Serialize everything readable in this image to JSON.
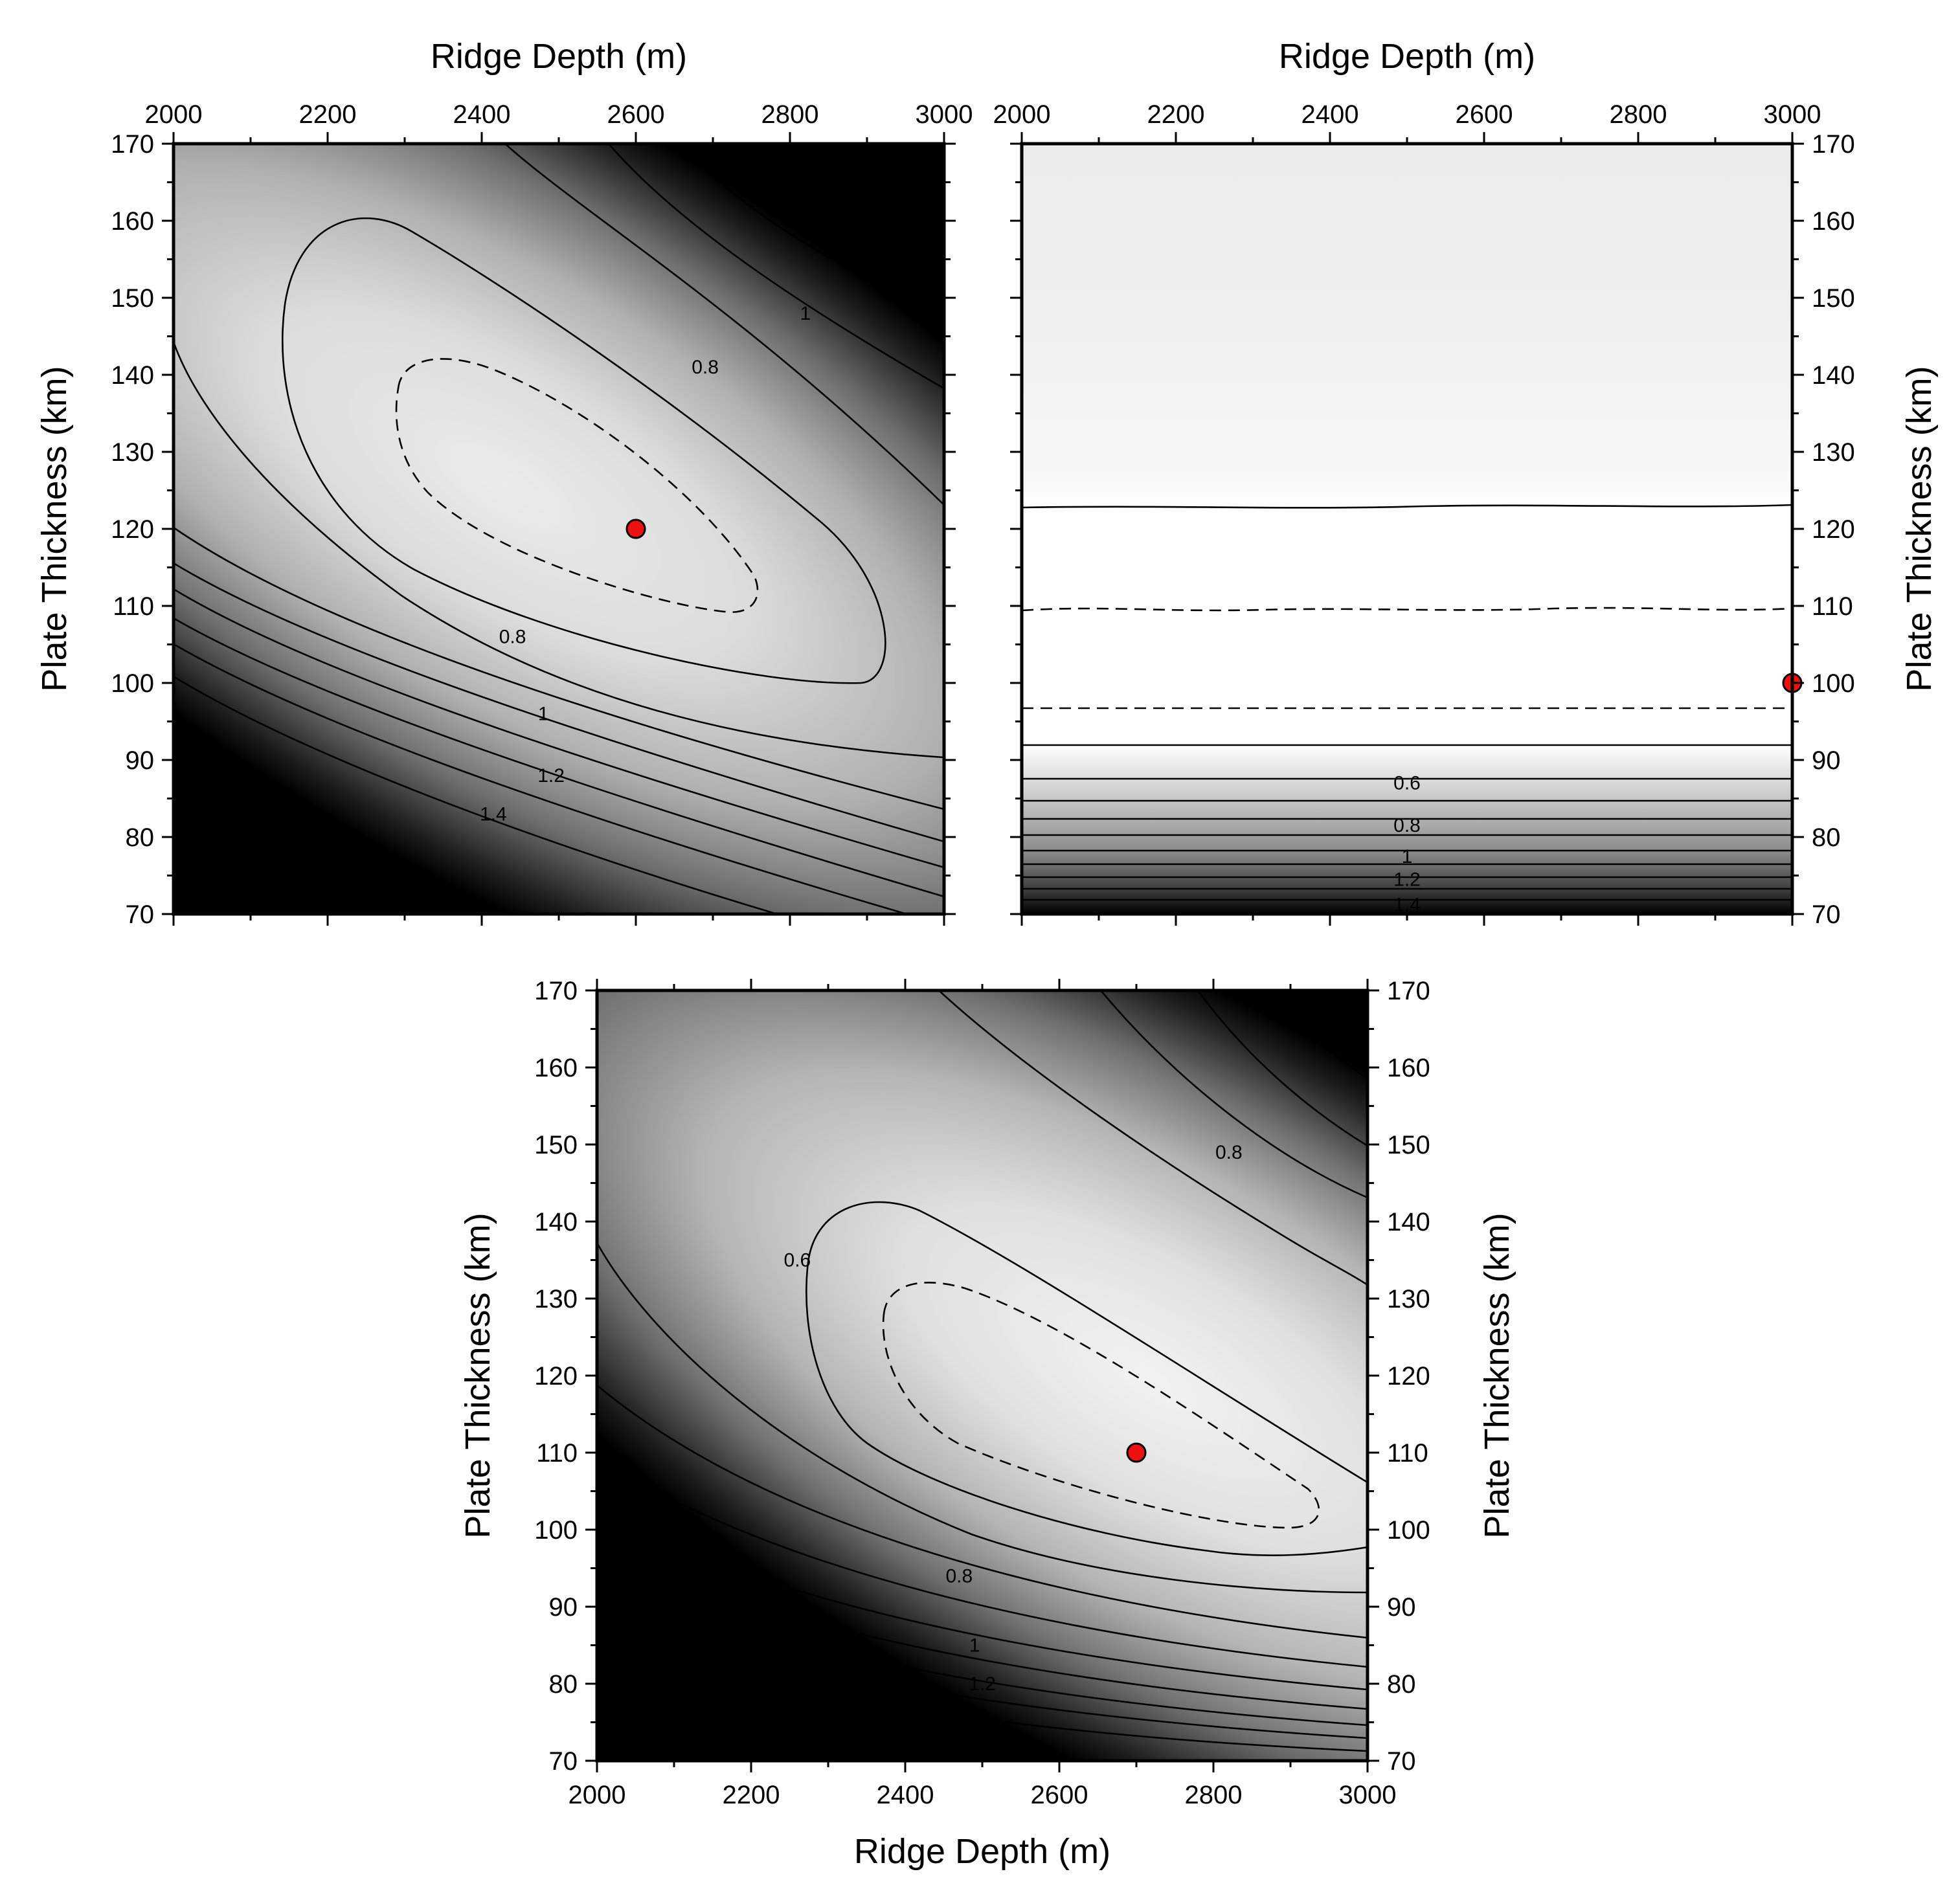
{
  "chart_data": [
    {
      "type": "heatmap",
      "xlabel": "Ridge Depth (m)",
      "ylabel": "Plate Thickness (km)",
      "xlim": [
        2000,
        3000
      ],
      "ylim": [
        70,
        170
      ],
      "xticks": [
        2000,
        2200,
        2400,
        2600,
        2800,
        3000
      ],
      "yticks": [
        70,
        80,
        90,
        100,
        110,
        120,
        130,
        140,
        150,
        160,
        170
      ],
      "x_axis_position": "top",
      "y_axis_position": "left",
      "colormap": "grayscale (light = low misfit, dark = high misfit)",
      "best_fit": {
        "x": 2600,
        "y": 120
      },
      "contour_labels": [
        {
          "text": "0.8",
          "x": 2690,
          "y": 141
        },
        {
          "text": "1",
          "x": 2820,
          "y": 148
        },
        {
          "text": "1.2",
          "x": 2920,
          "y": 159
        },
        {
          "text": "0.8",
          "x": 2440,
          "y": 106
        },
        {
          "text": "1",
          "x": 2480,
          "y": 96
        },
        {
          "text": "1.2",
          "x": 2490,
          "y": 88
        },
        {
          "text": "1.4",
          "x": 2415,
          "y": 83
        }
      ]
    },
    {
      "type": "heatmap",
      "xlabel": "Ridge Depth (m)",
      "ylabel": "Plate Thickness (km)",
      "xlim": [
        2000,
        3000
      ],
      "ylim": [
        70,
        170
      ],
      "xticks": [
        2000,
        2200,
        2400,
        2600,
        2800,
        3000
      ],
      "yticks": [
        70,
        80,
        90,
        100,
        110,
        120,
        130,
        140,
        150,
        160,
        170
      ],
      "x_axis_position": "top",
      "y_axis_position": "right",
      "colormap": "grayscale (light = low misfit, dark = high misfit)",
      "best_fit": {
        "x": 3000,
        "y": 100
      },
      "contour_labels": [
        {
          "text": "0.6",
          "x": 2500,
          "y": 87
        },
        {
          "text": "0.8",
          "x": 2500,
          "y": 81.5
        },
        {
          "text": "1",
          "x": 2500,
          "y": 77.5
        },
        {
          "text": "1.2",
          "x": 2500,
          "y": 74.5
        },
        {
          "text": "1.4",
          "x": 2500,
          "y": 71.2
        }
      ]
    },
    {
      "type": "heatmap",
      "xlabel": "Ridge Depth (m)",
      "ylabel": "Plate Thickness (km)",
      "xlim": [
        2000,
        3000
      ],
      "ylim": [
        70,
        170
      ],
      "xticks": [
        2000,
        2200,
        2400,
        2600,
        2800,
        3000
      ],
      "yticks": [
        70,
        80,
        90,
        100,
        110,
        120,
        130,
        140,
        150,
        160,
        170
      ],
      "x_axis_position": "bottom",
      "y_axis_position": "both",
      "colormap": "grayscale (light = low misfit, dark = high misfit)",
      "best_fit": {
        "x": 2700,
        "y": 110
      },
      "contour_labels": [
        {
          "text": "0.6",
          "x": 2260,
          "y": 135
        },
        {
          "text": "0.8",
          "x": 2820,
          "y": 149
        },
        {
          "text": "1",
          "x": 2970,
          "y": 164
        },
        {
          "text": "0.8",
          "x": 2470,
          "y": 94
        },
        {
          "text": "1",
          "x": 2490,
          "y": 85
        },
        {
          "text": "1.2",
          "x": 2500,
          "y": 80
        },
        {
          "text": "1.4",
          "x": 2490,
          "y": 76
        }
      ]
    }
  ]
}
